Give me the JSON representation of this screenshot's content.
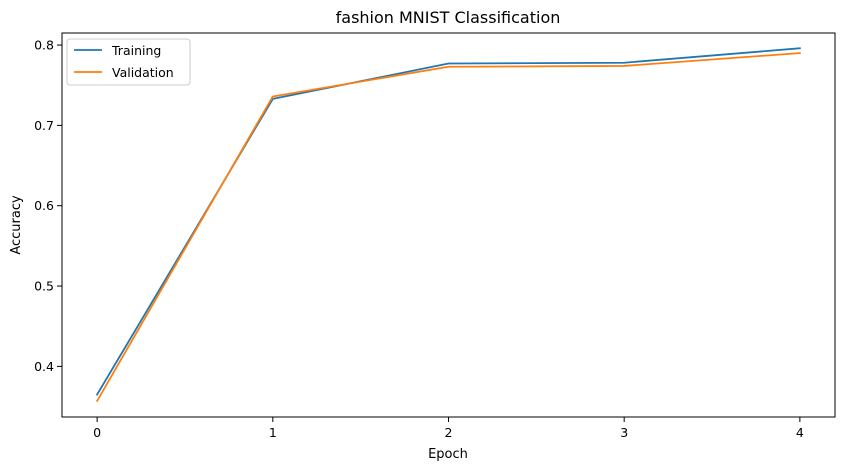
{
  "chart_data": {
    "type": "line",
    "title": "fashion MNIST Classification",
    "xlabel": "Epoch",
    "ylabel": "Accuracy",
    "x": [
      0,
      1,
      2,
      3,
      4
    ],
    "xticks": [
      "0",
      "1",
      "2",
      "3",
      "4"
    ],
    "yticks": [
      "0.4",
      "0.5",
      "0.6",
      "0.7",
      "0.8"
    ],
    "xlim": [
      -0.2,
      4.2
    ],
    "ylim": [
      0.337,
      0.815
    ],
    "grid": false,
    "legend_position": "top-left",
    "series": [
      {
        "name": "Training",
        "color": "#1f77b4",
        "values": [
          0.365,
          0.733,
          0.777,
          0.778,
          0.796
        ]
      },
      {
        "name": "Validation",
        "color": "#ff7f0e",
        "values": [
          0.357,
          0.736,
          0.773,
          0.774,
          0.79
        ]
      }
    ]
  }
}
